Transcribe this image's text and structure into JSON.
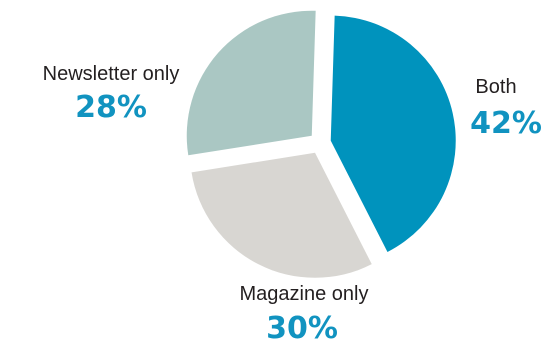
{
  "chart_data": {
    "type": "pie",
    "title": "",
    "exploded": true,
    "slices": [
      {
        "label": "Both",
        "value": 42,
        "value_text": "42%",
        "color": "#0093bd"
      },
      {
        "label": "Magazine only",
        "value": 30,
        "value_text": "30%",
        "color": "#d8d6d2"
      },
      {
        "label": "Newsletter only",
        "value": 28,
        "value_text": "28%",
        "color": "#aac7c3"
      }
    ],
    "value_label_color": "#1193c0"
  }
}
